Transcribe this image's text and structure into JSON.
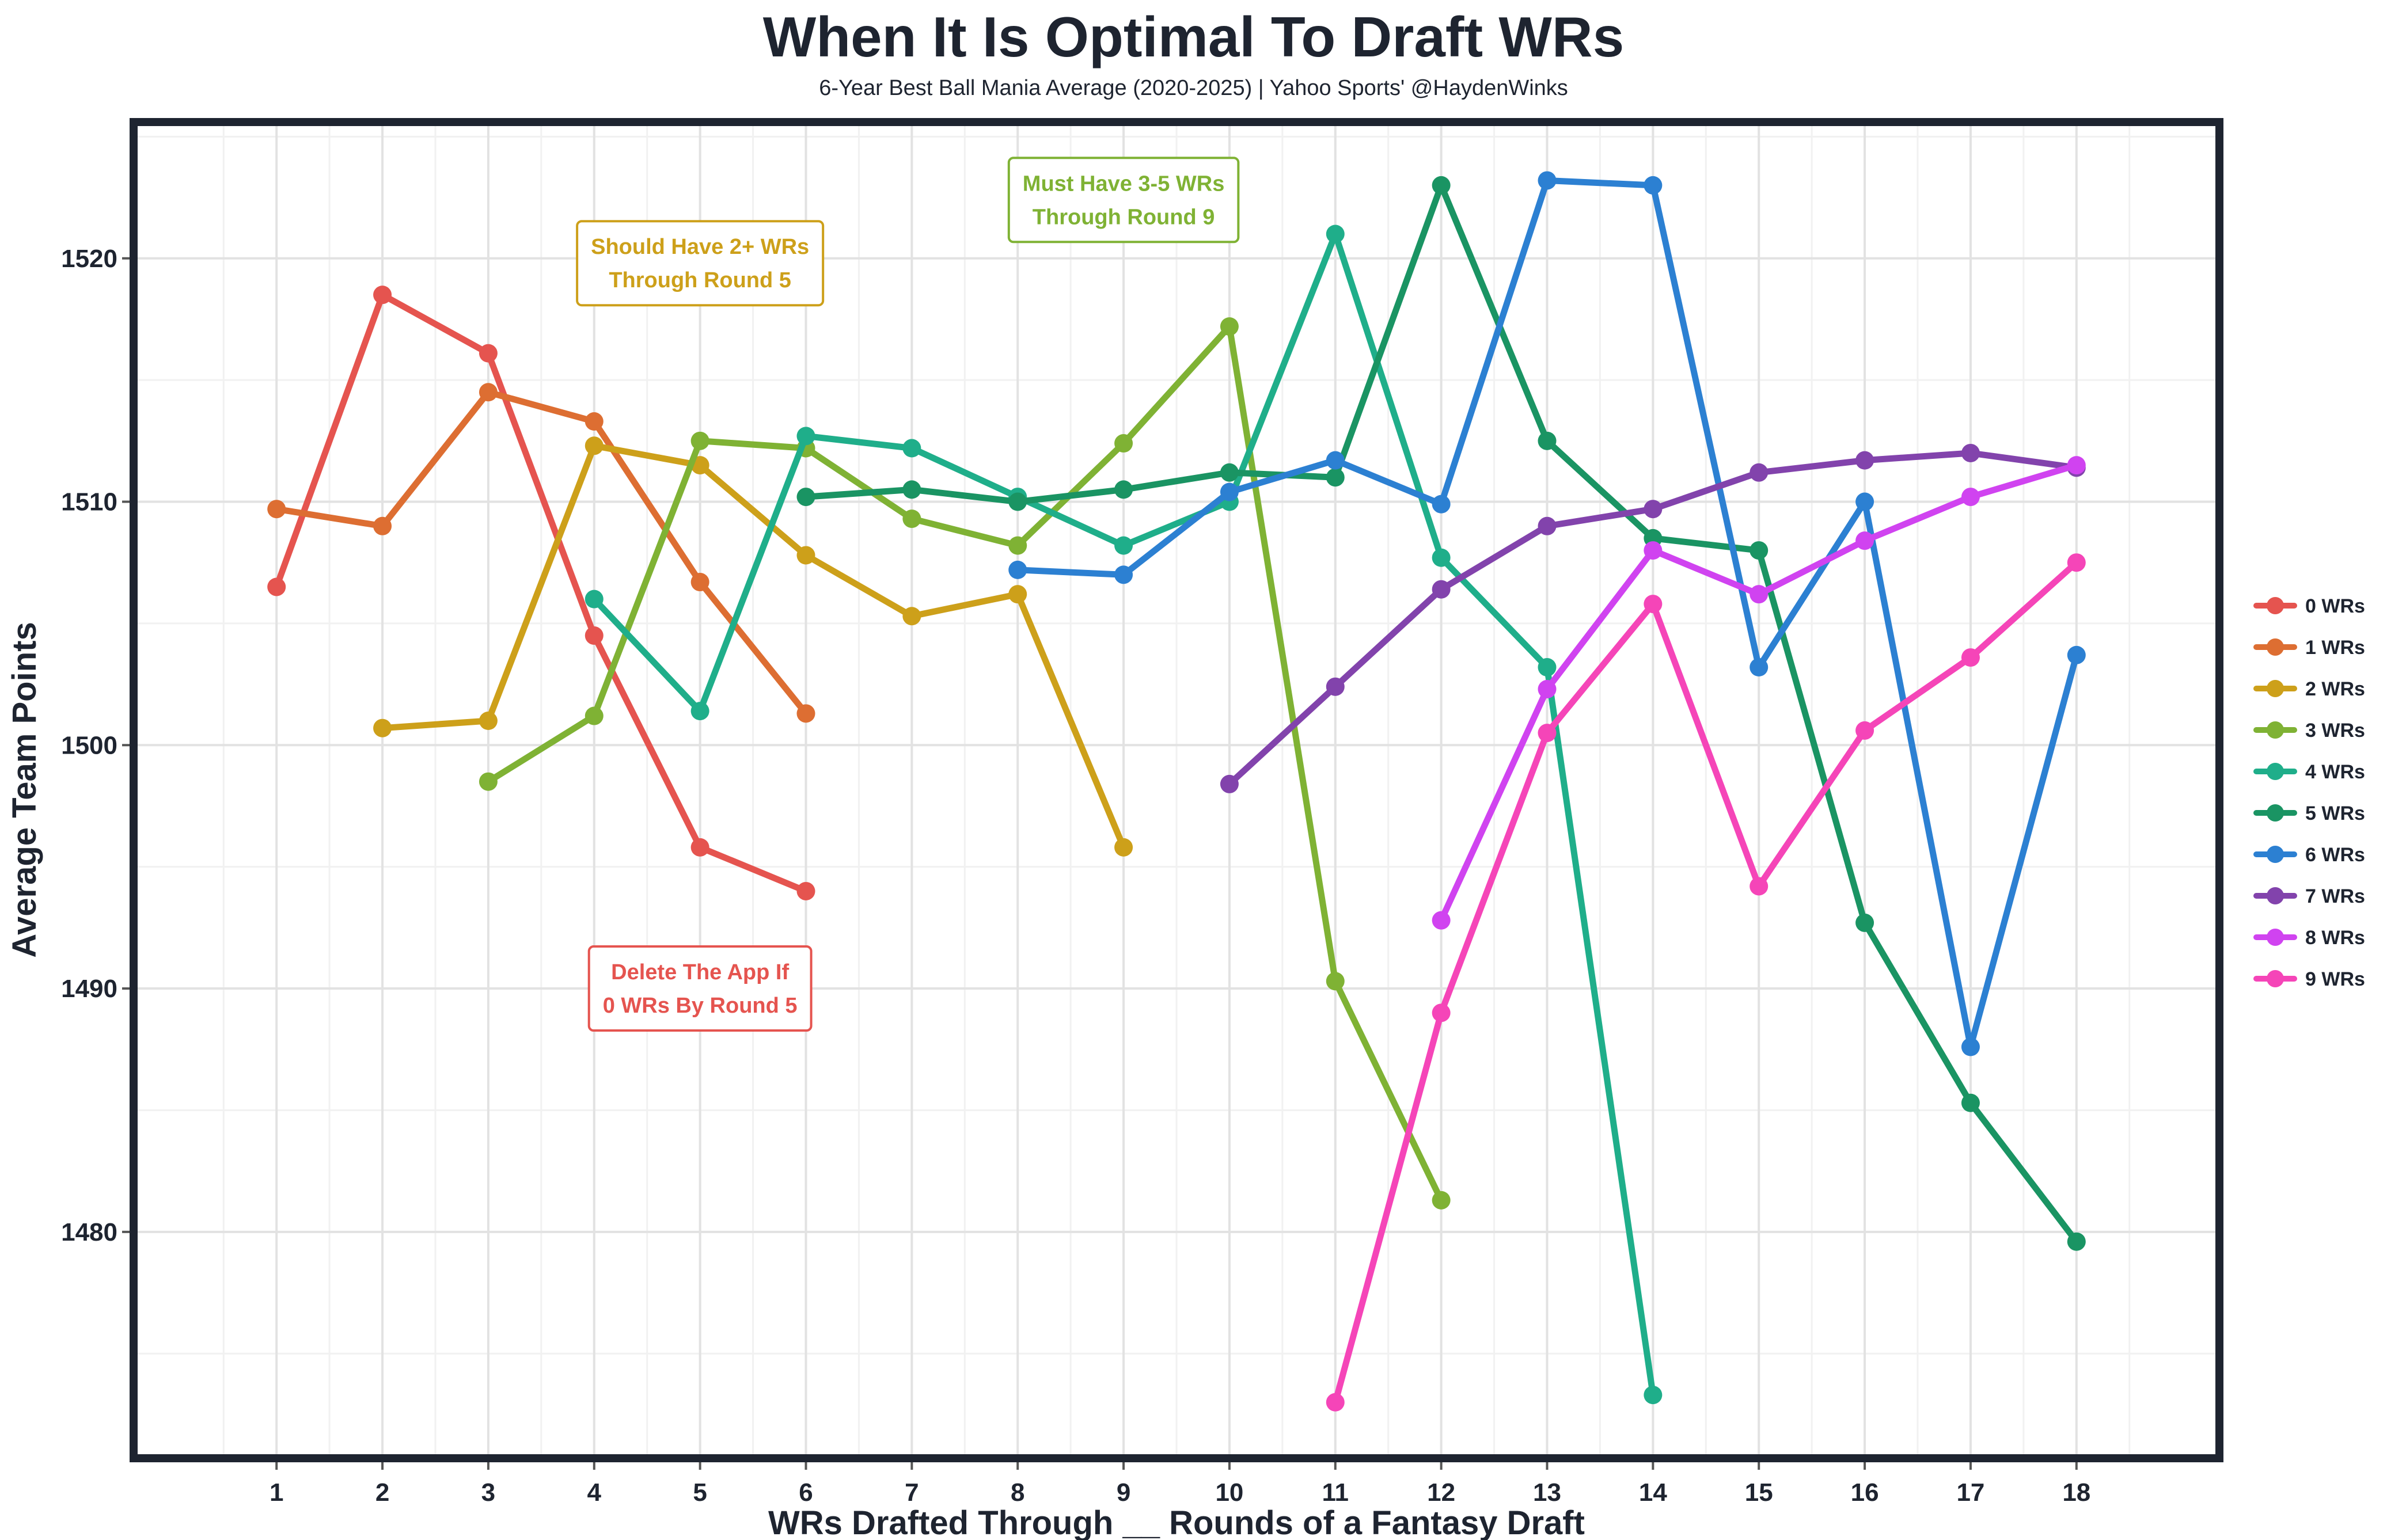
{
  "title": "When It Is Optimal To Draft WRs",
  "subtitle": "6-Year Best Ball Mania Average (2020-2025) | Yahoo Sports' @HaydenWinks",
  "chart_data": {
    "type": "line",
    "title": "When It Is Optimal To Draft WRs",
    "subtitle": "6-Year Best Ball Mania Average (2020-2025) | Yahoo Sports' @HaydenWinks",
    "xlabel": "WRs Drafted Through __ Rounds of a Fantasy Draft",
    "ylabel": "Average Team Points",
    "xlim": [
      -0.35,
      19.35
    ],
    "ylim": [
      1470.7,
      1525.6
    ],
    "x_ticks": [
      "1",
      "2",
      "3",
      "4",
      "5",
      "6",
      "7",
      "8",
      "9",
      "10",
      "11",
      "12",
      "13",
      "14",
      "15",
      "16",
      "17",
      "18"
    ],
    "y_ticks": [
      "1480",
      "1490",
      "1500",
      "1510",
      "1520"
    ],
    "grid": true,
    "legend_position": "right",
    "series": [
      {
        "name": "0 WRs",
        "color": "#E5544F",
        "points": [
          [
            1,
            1506.5
          ],
          [
            2,
            1518.5
          ],
          [
            3,
            1516.1
          ],
          [
            4,
            1504.5
          ],
          [
            5,
            1495.8
          ],
          [
            6,
            1494.0
          ]
        ]
      },
      {
        "name": "1 WRs",
        "color": "#DD6E32",
        "points": [
          [
            1,
            1509.7
          ],
          [
            2,
            1509.0
          ],
          [
            3,
            1514.5
          ],
          [
            4,
            1513.3
          ],
          [
            5,
            1506.7
          ],
          [
            6,
            1501.3
          ]
        ]
      },
      {
        "name": "2 WRs",
        "color": "#CDA01A",
        "points": [
          [
            2,
            1500.7
          ],
          [
            3,
            1501.0
          ],
          [
            4,
            1512.3
          ],
          [
            5,
            1511.5
          ],
          [
            6,
            1507.8
          ],
          [
            7,
            1505.3
          ],
          [
            8,
            1506.2
          ],
          [
            9,
            1495.8
          ]
        ]
      },
      {
        "name": "3 WRs",
        "color": "#7FB234",
        "points": [
          [
            3,
            1498.5
          ],
          [
            4,
            1501.2
          ],
          [
            5,
            1512.5
          ],
          [
            6,
            1512.2
          ],
          [
            7,
            1509.3
          ],
          [
            8,
            1508.2
          ],
          [
            9,
            1512.4
          ],
          [
            10,
            1517.2
          ],
          [
            11,
            1490.3
          ],
          [
            12,
            1481.3
          ]
        ]
      },
      {
        "name": "4 WRs",
        "color": "#1FAE8A",
        "points": [
          [
            4,
            1506.0
          ],
          [
            5,
            1501.4
          ],
          [
            6,
            1512.7
          ],
          [
            7,
            1512.2
          ],
          [
            8,
            1510.2
          ],
          [
            9,
            1508.2
          ],
          [
            10,
            1510.0
          ],
          [
            11,
            1521.0
          ],
          [
            12,
            1507.7
          ],
          [
            13,
            1503.2
          ],
          [
            14,
            1473.3
          ]
        ]
      },
      {
        "name": "5 WRs",
        "color": "#1A9463",
        "points": [
          [
            6,
            1510.2
          ],
          [
            7,
            1510.5
          ],
          [
            8,
            1510.0
          ],
          [
            9,
            1510.5
          ],
          [
            10,
            1511.2
          ],
          [
            11,
            1511.0
          ],
          [
            12,
            1523.0
          ],
          [
            13,
            1512.5
          ],
          [
            14,
            1508.5
          ],
          [
            15,
            1508.0
          ],
          [
            16,
            1492.7
          ],
          [
            17,
            1485.3
          ],
          [
            18,
            1479.6
          ]
        ]
      },
      {
        "name": "6 WRs",
        "color": "#2C80D2",
        "points": [
          [
            8,
            1507.2
          ],
          [
            9,
            1507.0
          ],
          [
            10,
            1510.4
          ],
          [
            11,
            1511.7
          ],
          [
            12,
            1509.9
          ],
          [
            13,
            1523.2
          ],
          [
            14,
            1523.0
          ],
          [
            15,
            1503.2
          ],
          [
            16,
            1510.0
          ],
          [
            17,
            1487.6
          ],
          [
            18,
            1503.7
          ]
        ]
      },
      {
        "name": "7 WRs",
        "color": "#8243AC",
        "points": [
          [
            10,
            1498.4
          ],
          [
            11,
            1502.4
          ],
          [
            12,
            1506.4
          ],
          [
            13,
            1509.0
          ],
          [
            14,
            1509.7
          ],
          [
            15,
            1511.2
          ],
          [
            16,
            1511.7
          ],
          [
            17,
            1512.0
          ],
          [
            18,
            1511.4
          ]
        ]
      },
      {
        "name": "8 WRs",
        "color": "#D043F0",
        "points": [
          [
            12,
            1492.8
          ],
          [
            13,
            1502.3
          ],
          [
            14,
            1508.0
          ],
          [
            15,
            1506.2
          ],
          [
            16,
            1508.4
          ],
          [
            17,
            1510.2
          ],
          [
            18,
            1511.5
          ]
        ]
      },
      {
        "name": "9 WRs",
        "color": "#F545B8",
        "points": [
          [
            11,
            1473.0
          ],
          [
            12,
            1489.0
          ],
          [
            13,
            1500.5
          ],
          [
            14,
            1505.8
          ],
          [
            15,
            1494.2
          ],
          [
            16,
            1500.6
          ],
          [
            17,
            1503.6
          ],
          [
            18,
            1507.5
          ]
        ]
      }
    ],
    "annotations": [
      {
        "lines": [
          "Should Have 2+ WRs",
          "Through Round 5"
        ],
        "x": 5,
        "y": 1519.8,
        "color": "#CDA01A"
      },
      {
        "lines": [
          "Must Have 3-5 WRs",
          "Through Round 9"
        ],
        "x": 9,
        "y": 1522.4,
        "color": "#7FB234"
      },
      {
        "lines": [
          "Delete The App If",
          "0 WRs By Round 5"
        ],
        "x": 5,
        "y": 1490.0,
        "color": "#E5544F"
      }
    ]
  }
}
